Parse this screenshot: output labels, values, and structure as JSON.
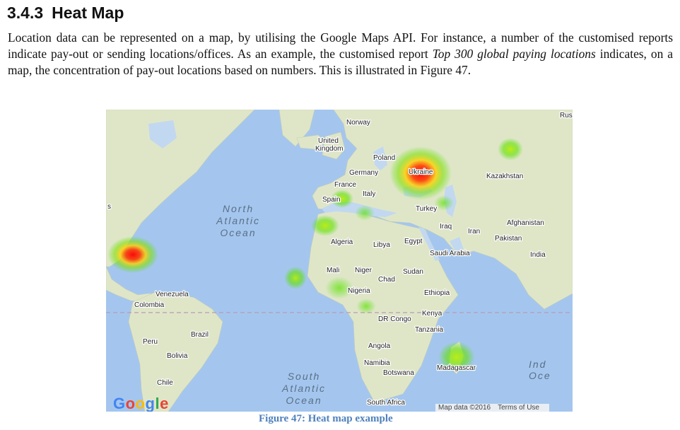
{
  "section": {
    "number": "3.4.3",
    "title": "Heat Map"
  },
  "paragraph": {
    "text1": "Location data can be represented on a map, by utilising the Google Maps API. For instance, a number of the customised reports indicate pay-out or sending locations/offices. As an example, the customised report ",
    "italic": "Top 300 global paying locations",
    "text2": " indicates, on a map, the concentration of pay-out locations based on numbers. This is illustrated in Figure 47."
  },
  "map": {
    "ocean_labels": {
      "north_atlantic": [
        "North",
        "Atlantic",
        "Ocean"
      ],
      "south_atlantic": [
        "South",
        "Atlantic",
        "Ocean"
      ],
      "indian": [
        "Ind",
        "Oce"
      ]
    },
    "country_labels": {
      "norway": "Norway",
      "united_kingdom_1": "United",
      "united_kingdom_2": "Kingdom",
      "poland": "Poland",
      "germany": "Germany",
      "ukraine": "Ukraine",
      "france": "France",
      "italy": "Italy",
      "spain": "Spain",
      "turkey": "Turkey",
      "kazakhstan": "Kazakhstan",
      "iraq": "Iraq",
      "iran": "Iran",
      "afghanistan": "Afghanistan",
      "pakistan": "Pakistan",
      "india": "India",
      "algeria": "Algeria",
      "libya": "Libya",
      "egypt": "Egypt",
      "saudi_arabia": "Saudi Arabia",
      "mali": "Mali",
      "niger": "Niger",
      "chad": "Chad",
      "sudan": "Sudan",
      "nigeria": "Nigeria",
      "ethiopia": "Ethiopia",
      "venezuela": "Venezuela",
      "colombia": "Colombia",
      "dr_congo": "DR Congo",
      "kenya": "Kenya",
      "tanzania": "Tanzania",
      "peru": "Peru",
      "brazil": "Brazil",
      "bolivia": "Bolivia",
      "angola": "Angola",
      "namibia": "Namibia",
      "botswana": "Botswana",
      "madagascar": "Madagascar",
      "chile": "Chile",
      "south_africa": "South Africa",
      "rus": "Rus",
      "s_edge": "s"
    },
    "google_logo": [
      "G",
      "o",
      "o",
      "g",
      "l",
      "e"
    ],
    "google_logo_colors": [
      "#4285f4",
      "#ea4335",
      "#fbbc05",
      "#4285f4",
      "#34a853",
      "#ea4335"
    ],
    "zoom_in": "+",
    "zoom_out": "−",
    "attribution": {
      "map_data": "Map data ©2016",
      "terms": "Terms of Use"
    }
  },
  "caption": "Figure 47: Heat map example"
}
